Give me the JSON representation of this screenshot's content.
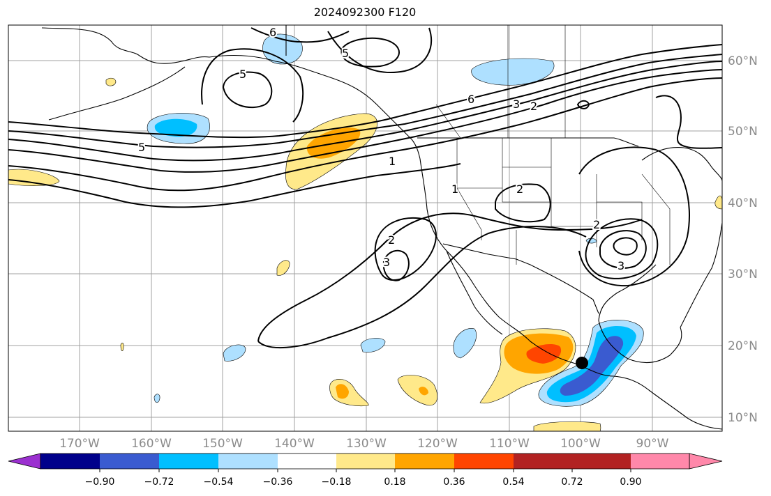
{
  "title": "2024092300 F120",
  "lon_labels": [
    "170°W",
    "160°W",
    "150°W",
    "140°W",
    "130°W",
    "120°W",
    "110°W",
    "100°W",
    "90°W"
  ],
  "lat_labels": [
    "60°N",
    "50°N",
    "40°N",
    "30°N",
    "20°N",
    "10°N"
  ],
  "contour_labels": [
    "6",
    "5",
    "5",
    "5",
    "6",
    "3",
    "2",
    "1",
    "1",
    "2",
    "2",
    "3",
    "2",
    "3"
  ],
  "colorbar": {
    "ticks": [
      "−0.90",
      "−0.72",
      "−0.54",
      "−0.36",
      "−0.18",
      "0.18",
      "0.36",
      "0.54",
      "0.72",
      "0.90"
    ],
    "colors": [
      "#9b30d0",
      "#00008b",
      "#3a5bd0",
      "#00bfff",
      "#aee0ff",
      "#ffffff",
      "#ffe98a",
      "#ffa500",
      "#ff4500",
      "#b22222",
      "#ff88aa"
    ]
  },
  "marker": {
    "label": "",
    "color": "#000000"
  }
}
